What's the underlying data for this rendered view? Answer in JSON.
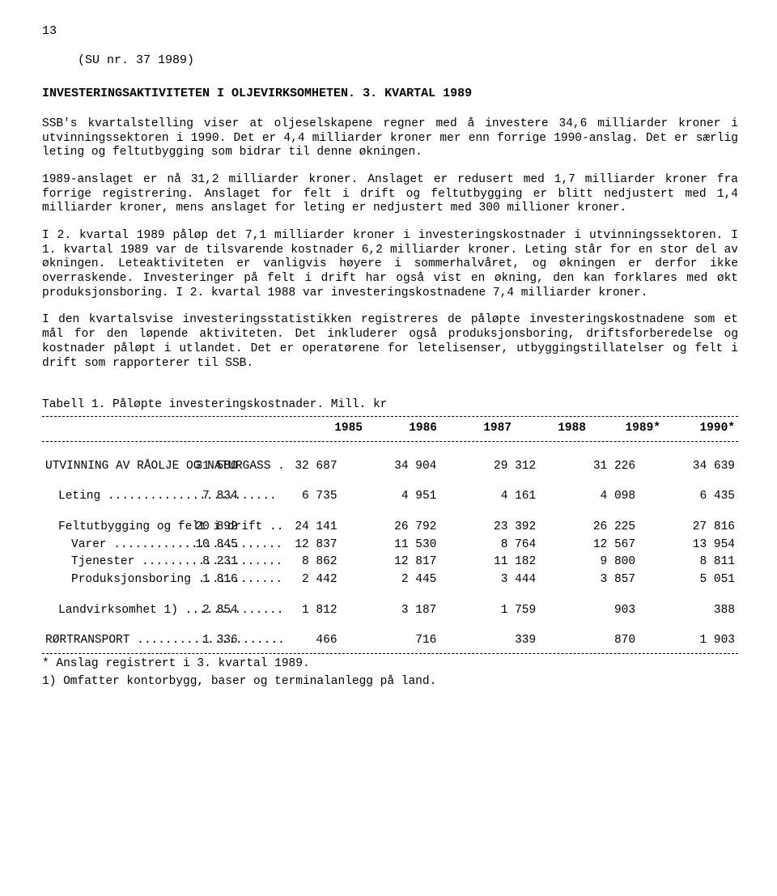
{
  "page_number": "13",
  "reference": "(SU   nr. 37 1989)",
  "title": "INVESTERINGSAKTIVITETEN I OLJEVIRKSOMHETEN. 3. KVARTAL 1989",
  "paragraphs": [
    "SSB's kvartalstelling viser at oljeselskapene regner med å investere 34,6 milliarder kroner i utvinningssektoren i 1990. Det er 4,4 milliarder kroner mer enn forrige 1990-anslag.  Det er særlig leting og feltutbygging som bidrar til denne økningen.",
    "1989-anslaget er nå 31,2 milliarder kroner. Anslaget er redusert med 1,7 milliarder kroner fra forrige registrering. Anslaget for felt i drift og feltutbygging er blitt nedjustert med 1,4 milliarder kroner, mens anslaget for leting er nedjustert med 300 millioner kroner.",
    "I 2. kvartal 1989 påløp det 7,1 milliarder kroner i investeringskostnader i utvinningssektoren.  I 1. kvartal 1989 var de tilsvarende kostnader 6,2 milliarder kroner. Leting står for en stor del av økningen.  Leteaktiviteten er vanligvis høyere i sommerhalvåret, og økningen er derfor ikke overraskende.  Investeringer på felt i drift har også vist en økning, den kan forklares med økt produksjonsboring. I 2. kvartal 1988 var investeringskostnadene 7,4 milliarder kroner.",
    "I den kvartalsvise investeringsstatistikken registreres de påløpte investeringskostnadene som et mål for den løpende aktiviteten. Det inkluderer også produksjonsboring, driftsforberedelse og kostnader påløpt i utlandet. Det er operatørene for letelisenser, utbyggingstillatelser og felt i drift som rapporterer til SSB."
  ],
  "table": {
    "caption": "Tabell 1.  Påløpte investeringskostnader.  Mill. kr",
    "columns": [
      "1985",
      "1986",
      "1987",
      "1988",
      "1989*",
      "1990*"
    ],
    "rows": [
      {
        "label": "UTVINNING AV RÅOLJE OG NATURGASS .",
        "values": [
          "31 580",
          "32 687",
          "34 904",
          "29 312",
          "31 226",
          "34 639"
        ],
        "indent": 0,
        "gap_after": true
      },
      {
        "label": "Leting ........................",
        "values": [
          "7 834",
          "6 735",
          "4 951",
          "4 161",
          "4 098",
          "6 435"
        ],
        "indent": 1,
        "gap_after": true
      },
      {
        "label": "Feltutbygging og felt i drift ..",
        "values": [
          "20 892",
          "24 141",
          "26 792",
          "23 392",
          "26 225",
          "27 816"
        ],
        "indent": 1
      },
      {
        "label": "Varer ........................",
        "values": [
          "10 845",
          "12 837",
          "11 530",
          "8 764",
          "12 567",
          "13 954"
        ],
        "indent": 2
      },
      {
        "label": "Tjenester ....................",
        "values": [
          "8 231",
          "8 862",
          "12 817",
          "11 182",
          "9 800",
          "8 811"
        ],
        "indent": 2
      },
      {
        "label": "Produksjonsboring ............",
        "values": [
          "1 816",
          "2 442",
          "2 445",
          "3 444",
          "3 857",
          "5 051"
        ],
        "indent": 2,
        "gap_after": true
      },
      {
        "label": "Landvirksomhet 1) ..............",
        "values": [
          "2 854",
          "1 812",
          "3 187",
          "1 759",
          "903",
          "388"
        ],
        "indent": 1,
        "gap_after": true
      },
      {
        "label": "RØRTRANSPORT .....................",
        "values": [
          "1 336",
          "466",
          "716",
          "339",
          "870",
          "1 903"
        ],
        "indent": 0
      }
    ]
  },
  "footnotes": [
    "* Anslag registrert i 3. kvartal 1989.",
    "1) Omfatter kontorbygg, baser og terminalanlegg på land."
  ]
}
